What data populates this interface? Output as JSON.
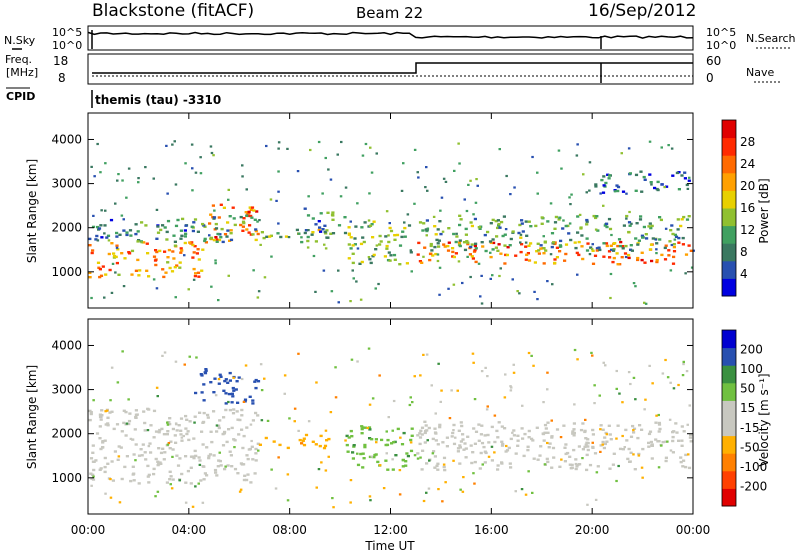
{
  "header": {
    "station": "Blackstone (fitACF)",
    "beam": "Beam 22",
    "date": "16/Sep/2012"
  },
  "top_panels": {
    "nsky_label": "N.Sky",
    "nsky_tick_top": "10^5",
    "nsky_tick_bottom": "10^0",
    "nsearch_label": "N.Search",
    "nsearch_tick_top": "10^5",
    "nsearch_tick_bottom": "10^0",
    "freq_label": "Freq.",
    "freq_unit": "[MHz]",
    "freq_tick_top": "18",
    "freq_tick_bottom": "8",
    "nave_label": "Nave",
    "nave_tick_top": "60",
    "nave_tick_bottom": "0",
    "cpid_label": "CPID",
    "cpid_text": "themis (tau) -3310"
  },
  "chart_data": [
    {
      "type": "heatmap",
      "name": "power",
      "ylabel": "Slant Range [km]",
      "yticks": [
        1000,
        2000,
        3000,
        4000
      ],
      "ylim": [
        180,
        4600
      ],
      "xlim": [
        0,
        24
      ],
      "colorbar_label": "Power [dB]",
      "colorbar_ticks": [
        "28",
        "24",
        "20",
        "16",
        "12",
        "8",
        "4"
      ],
      "colorbar_colors": [
        "#0000e0",
        "#2850b0",
        "#3a7860",
        "#40a060",
        "#90c030",
        "#e8d000",
        "#ffa000",
        "#ff6a00",
        "#ff2a00",
        "#e00000"
      ],
      "bands": [
        {
          "t0": 0.0,
          "t1": 4.7,
          "r0": 900,
          "r1": 1700,
          "value": 22
        },
        {
          "t0": 4.7,
          "t1": 6.7,
          "r0": 1700,
          "r1": 2600,
          "value": 24
        },
        {
          "t0": 0.0,
          "t1": 6.7,
          "r0": 1700,
          "r1": 2300,
          "value": 10
        },
        {
          "t0": 6.7,
          "t1": 9.5,
          "r0": 1700,
          "r1": 2000,
          "value": 16
        },
        {
          "t0": 8.5,
          "t1": 10.2,
          "r0": 1800,
          "r1": 2500,
          "value": 10
        },
        {
          "t0": 10.2,
          "t1": 12.8,
          "r0": 1200,
          "r1": 2200,
          "value": 14
        },
        {
          "t0": 13.0,
          "t1": 24.0,
          "r0": 1200,
          "r1": 1700,
          "value": 24
        },
        {
          "t0": 13.0,
          "t1": 24.0,
          "r0": 1500,
          "r1": 2300,
          "value": 12
        },
        {
          "t0": 20.0,
          "t1": 24.0,
          "r0": 2800,
          "r1": 3300,
          "value": 8
        }
      ]
    },
    {
      "type": "heatmap",
      "name": "velocity",
      "xlabel": "Time UT",
      "xticks": [
        "00:00",
        "04:00",
        "08:00",
        "12:00",
        "16:00",
        "20:00",
        "00:00"
      ],
      "ylabel": "Slant Range [km]",
      "yticks": [
        1000,
        2000,
        3000,
        4000
      ],
      "ylim": [
        180,
        4600
      ],
      "xlim": [
        0,
        24
      ],
      "colorbar_label": "Velocity [m s⁻¹]",
      "colorbar_ticks": [
        "200",
        "100",
        "50",
        "15",
        "-15",
        "-50",
        "-100",
        "-200"
      ],
      "colorbar_colors": [
        "#e00000",
        "#ff4000",
        "#ff8000",
        "#ffb000",
        "#c8c8c0",
        "#c8c8c0",
        "#70c040",
        "#3a9040",
        "#2850b0",
        "#0000d0"
      ],
      "bands": [
        {
          "t0": 0.0,
          "t1": 6.7,
          "r0": 900,
          "r1": 2600,
          "value": 0
        },
        {
          "t0": 4.2,
          "t1": 6.7,
          "r0": 2700,
          "r1": 3500,
          "value": 180
        },
        {
          "t0": 6.7,
          "t1": 9.5,
          "r0": 1700,
          "r1": 2000,
          "value": -40
        },
        {
          "t0": 10.2,
          "t1": 12.8,
          "r0": 1200,
          "r1": 2200,
          "value": 40
        },
        {
          "t0": 13.0,
          "t1": 24.0,
          "r0": 1200,
          "r1": 2300,
          "value": 0
        }
      ]
    }
  ]
}
